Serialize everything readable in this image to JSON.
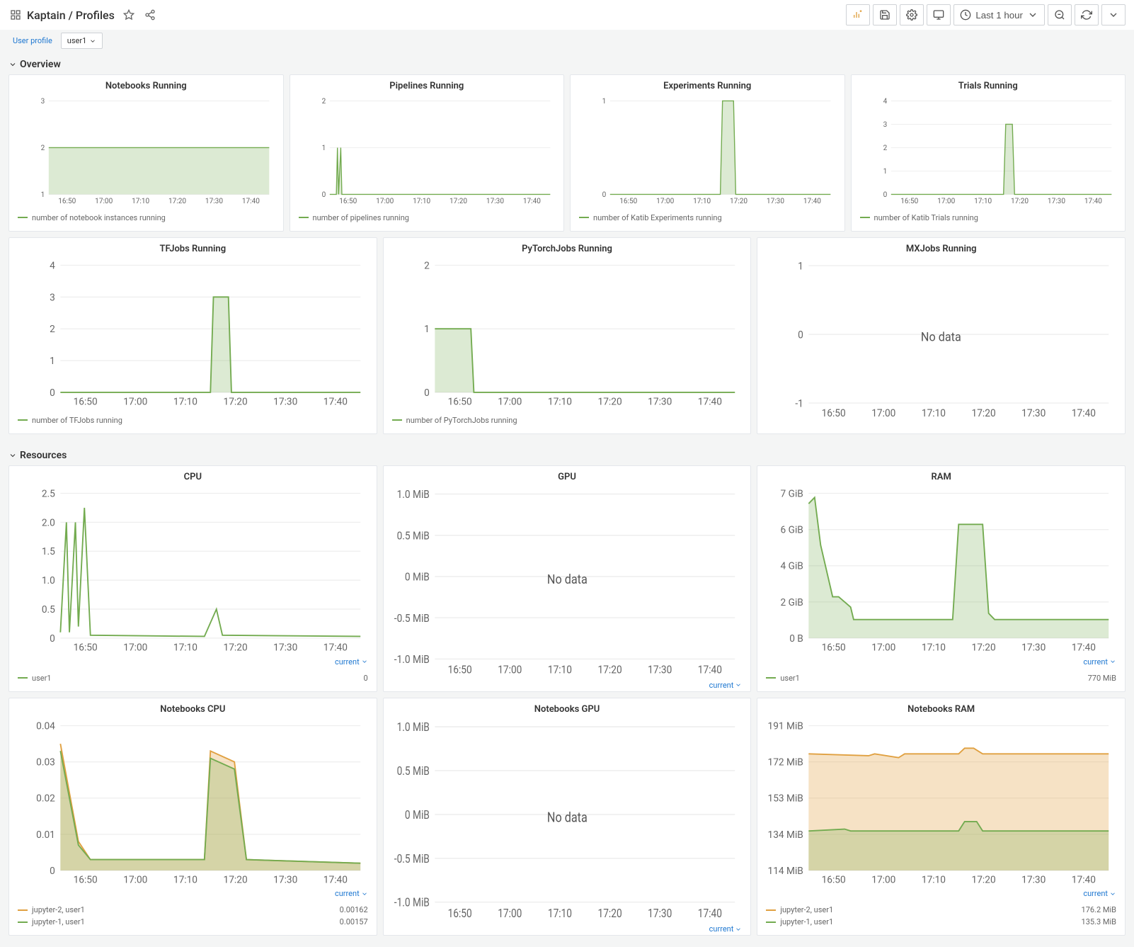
{
  "header": {
    "breadcrumb": "Kaptain / Profiles",
    "time_range": "Last 1 hour"
  },
  "filters": {
    "profile_label": "User profile",
    "profile_value": "user1"
  },
  "sections": {
    "overview": "Overview",
    "resources": "Resources"
  },
  "colors": {
    "green": "#73ab50",
    "orange": "#e0a040",
    "bg": "#f4f5f5",
    "panel_border": "#e4e7eb",
    "grid": "#eeeeee",
    "link": "#1f78d1"
  },
  "common": {
    "x_ticks": [
      "16:50",
      "17:00",
      "17:10",
      "17:20",
      "17:30",
      "17:40"
    ],
    "current_label": "current",
    "no_data": "No data"
  },
  "overview_row1": [
    {
      "title": "Notebooks Running",
      "y_ticks": [
        "1",
        "2",
        "3"
      ],
      "y_domain": [
        1,
        3
      ],
      "series": [
        {
          "color": "green",
          "data": [
            [
              0,
              2
            ],
            [
              100,
              2
            ]
          ],
          "area": true
        }
      ],
      "legend": [
        {
          "color": "green",
          "label": "number of notebook instances running"
        }
      ]
    },
    {
      "title": "Pipelines Running",
      "y_ticks": [
        "0",
        "1",
        "2"
      ],
      "y_domain": [
        0,
        2
      ],
      "series": [
        {
          "color": "green",
          "data": [
            [
              0,
              0
            ],
            [
              3,
              0
            ],
            [
              3.5,
              1
            ],
            [
              4,
              0
            ],
            [
              5,
              1
            ],
            [
              5.5,
              0
            ],
            [
              100,
              0
            ]
          ],
          "area": true
        }
      ],
      "legend": [
        {
          "color": "green",
          "label": "number of pipelines running"
        }
      ]
    },
    {
      "title": "Experiments Running",
      "y_ticks": [
        "0",
        "1"
      ],
      "y_domain": [
        0,
        1
      ],
      "series": [
        {
          "color": "green",
          "data": [
            [
              0,
              0
            ],
            [
              50,
              0
            ],
            [
              51,
              1
            ],
            [
              56,
              1
            ],
            [
              57,
              0
            ],
            [
              100,
              0
            ]
          ],
          "area": true
        }
      ],
      "legend": [
        {
          "color": "green",
          "label": "number of Katib Experiments running"
        }
      ]
    },
    {
      "title": "Trials Running",
      "y_ticks": [
        "0",
        "1",
        "2",
        "3",
        "4"
      ],
      "y_domain": [
        0,
        4
      ],
      "series": [
        {
          "color": "green",
          "data": [
            [
              0,
              0
            ],
            [
              51,
              0
            ],
            [
              52,
              3
            ],
            [
              55,
              3
            ],
            [
              56,
              0
            ],
            [
              100,
              0
            ]
          ],
          "area": true
        }
      ],
      "legend": [
        {
          "color": "green",
          "label": "number of Katib Trials running"
        }
      ]
    }
  ],
  "overview_row2": [
    {
      "title": "TFJobs Running",
      "y_ticks": [
        "0",
        "1",
        "2",
        "3",
        "4"
      ],
      "y_domain": [
        0,
        4
      ],
      "series": [
        {
          "color": "green",
          "data": [
            [
              0,
              0
            ],
            [
              50,
              0
            ],
            [
              51,
              3
            ],
            [
              56,
              3
            ],
            [
              57,
              0
            ],
            [
              100,
              0
            ]
          ],
          "area": true
        }
      ],
      "legend": [
        {
          "color": "green",
          "label": "number of TFJobs running"
        }
      ]
    },
    {
      "title": "PyTorchJobs Running",
      "y_ticks": [
        "0",
        "1",
        "2"
      ],
      "y_domain": [
        0,
        2
      ],
      "series": [
        {
          "color": "green",
          "data": [
            [
              0,
              1
            ],
            [
              12,
              1
            ],
            [
              13,
              0
            ],
            [
              100,
              0
            ]
          ],
          "area": true
        }
      ],
      "legend": [
        {
          "color": "green",
          "label": "number of PyTorchJobs running"
        }
      ]
    },
    {
      "title": "MXJobs Running",
      "y_ticks": [
        "-1",
        "0",
        "1"
      ],
      "y_domain": [
        -1,
        1
      ],
      "no_data": true,
      "series": [],
      "legend": []
    }
  ],
  "resources_row1": [
    {
      "title": "CPU",
      "y_ticks": [
        "0",
        "0.5",
        "1.0",
        "1.5",
        "2.0",
        "2.5"
      ],
      "y_domain": [
        0,
        2.5
      ],
      "series": [
        {
          "color": "green",
          "data": [
            [
              0,
              0.1
            ],
            [
              2,
              2.0
            ],
            [
              3,
              0.1
            ],
            [
              5,
              2.0
            ],
            [
              6,
              0.2
            ],
            [
              8,
              2.25
            ],
            [
              10,
              0.05
            ],
            [
              48,
              0.03
            ],
            [
              52,
              0.5
            ],
            [
              54,
              0.05
            ],
            [
              100,
              0.03
            ]
          ],
          "area": false
        }
      ],
      "current": true,
      "legend_table": [
        {
          "color": "green",
          "label": "user1",
          "value": "0"
        }
      ]
    },
    {
      "title": "GPU",
      "y_ticks": [
        "-1.0 MiB",
        "-0.5 MiB",
        "0 MiB",
        "0.5 MiB",
        "1.0 MiB"
      ],
      "y_domain": [
        -1,
        1
      ],
      "no_data": true,
      "series": [],
      "current": true
    },
    {
      "title": "RAM",
      "y_ticks": [
        "0 B",
        "2 GiB",
        "4 GiB",
        "6 GiB",
        "7 GiB"
      ],
      "y_domain": [
        0,
        7
      ],
      "series": [
        {
          "color": "green",
          "data": [
            [
              0,
              6.5
            ],
            [
              2,
              6.8
            ],
            [
              4,
              4.5
            ],
            [
              8,
              2.0
            ],
            [
              10,
              2.0
            ],
            [
              14,
              1.5
            ],
            [
              15,
              0.9
            ],
            [
              48,
              0.9
            ],
            [
              50,
              5.5
            ],
            [
              58,
              5.5
            ],
            [
              60,
              1.2
            ],
            [
              62,
              0.9
            ],
            [
              100,
              0.9
            ]
          ],
          "area": true
        }
      ],
      "current": true,
      "legend_table": [
        {
          "color": "green",
          "label": "user1",
          "value": "770 MiB"
        }
      ]
    }
  ],
  "resources_row2": [
    {
      "title": "Notebooks CPU",
      "y_ticks": [
        "0",
        "0.01",
        "0.02",
        "0.03",
        "0.04"
      ],
      "y_domain": [
        0,
        0.04
      ],
      "series": [
        {
          "color": "orange",
          "data": [
            [
              0,
              0.035
            ],
            [
              6,
              0.008
            ],
            [
              10,
              0.003
            ],
            [
              48,
              0.003
            ],
            [
              50,
              0.033
            ],
            [
              58,
              0.03
            ],
            [
              62,
              0.003
            ],
            [
              100,
              0.002
            ]
          ],
          "area": true
        },
        {
          "color": "green",
          "data": [
            [
              0,
              0.033
            ],
            [
              6,
              0.007
            ],
            [
              10,
              0.003
            ],
            [
              48,
              0.003
            ],
            [
              50,
              0.031
            ],
            [
              58,
              0.028
            ],
            [
              62,
              0.003
            ],
            [
              100,
              0.002
            ]
          ],
          "area": true
        }
      ],
      "current": true,
      "legend_table": [
        {
          "color": "orange",
          "label": "jupyter-2, user1",
          "value": "0.00162"
        },
        {
          "color": "green",
          "label": "jupyter-1, user1",
          "value": "0.00157"
        }
      ]
    },
    {
      "title": "Notebooks GPU",
      "y_ticks": [
        "-1.0 MiB",
        "-0.5 MiB",
        "0 MiB",
        "0.5 MiB",
        "1.0 MiB"
      ],
      "y_domain": [
        -1,
        1
      ],
      "no_data": true,
      "series": [],
      "current": true
    },
    {
      "title": "Notebooks RAM",
      "y_ticks": [
        "114 MiB",
        "134 MiB",
        "153 MiB",
        "172 MiB",
        "191 MiB"
      ],
      "y_domain": [
        114,
        191
      ],
      "series": [
        {
          "color": "orange",
          "data": [
            [
              0,
              176
            ],
            [
              20,
              175
            ],
            [
              22,
              176
            ],
            [
              30,
              174
            ],
            [
              32,
              176
            ],
            [
              50,
              176
            ],
            [
              52,
              179
            ],
            [
              55,
              179
            ],
            [
              58,
              176
            ],
            [
              100,
              176
            ]
          ],
          "area": true
        },
        {
          "color": "green",
          "data": [
            [
              0,
              135
            ],
            [
              12,
              136
            ],
            [
              14,
              135
            ],
            [
              50,
              135
            ],
            [
              52,
              140
            ],
            [
              56,
              140
            ],
            [
              58,
              135
            ],
            [
              100,
              135
            ]
          ],
          "area": true
        }
      ],
      "current": true,
      "legend_table": [
        {
          "color": "orange",
          "label": "jupyter-2, user1",
          "value": "176.2 MiB"
        },
        {
          "color": "green",
          "label": "jupyter-1, user1",
          "value": "135.3 MiB"
        }
      ]
    }
  ]
}
